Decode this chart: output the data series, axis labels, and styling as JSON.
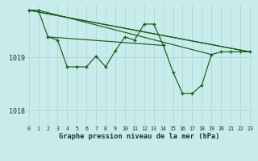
{
  "title": "Graphe pression niveau de la mer (hPa)",
  "bg_color": "#c8ecec",
  "grid_color": "#b0d8d8",
  "line_color": "#1a5c1a",
  "text_color": "#1a3320",
  "ylabel_values": [
    1018,
    1019
  ],
  "x_ticks": [
    0,
    1,
    2,
    3,
    4,
    5,
    6,
    7,
    8,
    9,
    10,
    11,
    12,
    13,
    14,
    15,
    16,
    17,
    18,
    19,
    20,
    21,
    22,
    23
  ],
  "xlim": [
    -0.3,
    23.3
  ],
  "ylim": [
    1017.72,
    1019.98
  ],
  "main_series": [
    1019.88,
    1019.88,
    1019.38,
    1019.32,
    1018.82,
    1018.82,
    1018.82,
    1019.02,
    1018.82,
    1019.12,
    1019.38,
    1019.32,
    1019.62,
    1019.62,
    1019.22,
    1018.72,
    1018.32,
    1018.32,
    1018.48,
    1019.05,
    1019.1,
    1019.1,
    1019.1,
    1019.1
  ],
  "diagonals": [
    {
      "x": [
        0,
        23
      ],
      "y": [
        1019.88,
        1019.1
      ]
    },
    {
      "x": [
        0,
        23
      ],
      "y": [
        1019.88,
        1019.1
      ]
    },
    {
      "x": [
        1,
        19
      ],
      "y": [
        1019.88,
        1019.05
      ]
    },
    {
      "x": [
        2,
        14
      ],
      "y": [
        1019.38,
        1019.22
      ]
    }
  ],
  "marker_size": 3.5,
  "line_width": 0.85
}
